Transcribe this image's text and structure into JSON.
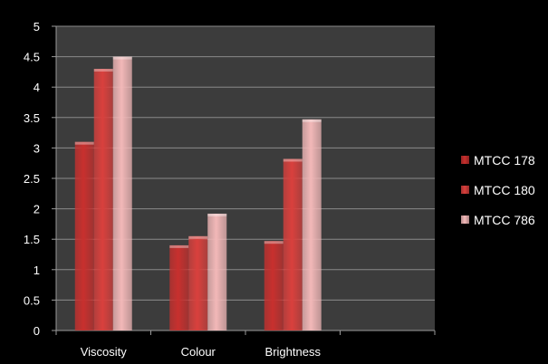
{
  "chart_data": {
    "type": "bar",
    "categories": [
      "Viscosity",
      "Colour",
      "Brightness",
      ""
    ],
    "series": [
      {
        "name": "MTCC 178",
        "values": [
          3.1,
          1.4,
          1.47,
          null
        ],
        "color": "#c8302e"
      },
      {
        "name": "MTCC 180",
        "values": [
          4.3,
          1.55,
          2.82,
          null
        ],
        "color": "#d9403d"
      },
      {
        "name": "MTCC 786",
        "values": [
          4.5,
          1.92,
          3.47,
          null
        ],
        "color": "#f2b8b8"
      }
    ],
    "yticks": [
      "0",
      "0.5",
      "1",
      "1.5",
      "2",
      "2.5",
      "3",
      "3.5",
      "4",
      "4.5",
      "5"
    ],
    "ylim": [
      0,
      5
    ],
    "grid": true,
    "legend": "right",
    "plot_background": "#3c3c3c",
    "background": "#000000",
    "title": "",
    "xlabel": "",
    "ylabel": ""
  }
}
